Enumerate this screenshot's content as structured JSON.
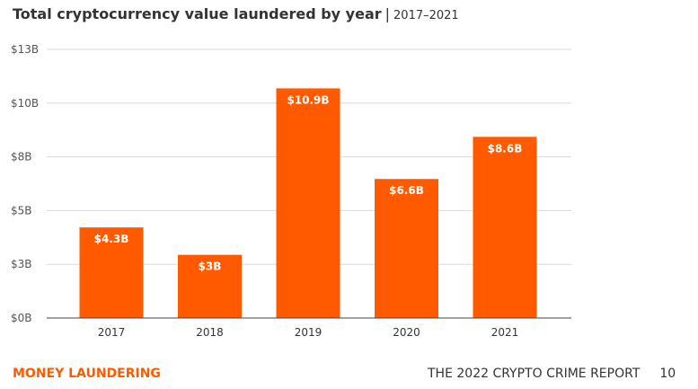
{
  "colors": {
    "bar": "#ff5a00",
    "grid": "#d9d9d9",
    "accent": "#ff5a00",
    "text": "#333333"
  },
  "footer": {
    "section": "MONEY LAUNDERING",
    "report": "THE 2022 CRYPTO CRIME REPORT",
    "page_number": "10"
  },
  "chart_data": {
    "type": "bar",
    "title": "Total cryptocurrency value laundered by year",
    "subtitle": "2017–2021",
    "categories": [
      "2017",
      "2018",
      "2019",
      "2020",
      "2021"
    ],
    "values": [
      4.3,
      3,
      10.9,
      6.6,
      8.6
    ],
    "data_labels": [
      "$4.3B",
      "$3B",
      "$10.9B",
      "$6.6B",
      "$8.6B"
    ],
    "ylim": [
      0,
      12.75
    ],
    "y_ticks": [
      {
        "value": 0,
        "label": "$0B"
      },
      {
        "value": 2.55,
        "label": "$3B"
      },
      {
        "value": 5.1,
        "label": "$5B"
      },
      {
        "value": 7.65,
        "label": "$8B"
      },
      {
        "value": 10.2,
        "label": "$10B"
      },
      {
        "value": 12.75,
        "label": "$13B"
      }
    ],
    "grid": true,
    "legend": "none"
  }
}
